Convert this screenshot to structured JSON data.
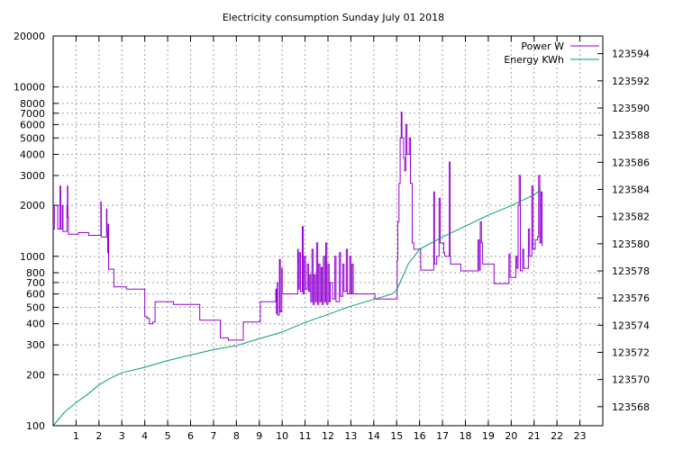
{
  "chart_data": {
    "type": "line",
    "title": "Electricity consumption Sunday July 01 2018",
    "xlabel": "",
    "ylabel": "",
    "y2label": "",
    "xlim": [
      0,
      24
    ],
    "ylim": [
      100,
      20000
    ],
    "y_scale": "log",
    "y2lim": [
      123566.6,
      123595.3
    ],
    "grid": true,
    "legend_position": "top-right",
    "x_ticks": [
      "1",
      "2",
      "3",
      "4",
      "5",
      "6",
      "7",
      "8",
      "9",
      "10",
      "11",
      "12",
      "13",
      "14",
      "15",
      "16",
      "17",
      "18",
      "19",
      "20",
      "21",
      "22",
      "23"
    ],
    "y_ticks": [
      {
        "value": 100,
        "label": "100"
      },
      {
        "value": 200,
        "label": "200"
      },
      {
        "value": 300,
        "label": "300"
      },
      {
        "value": 400,
        "label": "400"
      },
      {
        "value": 500,
        "label": "500"
      },
      {
        "value": 600,
        "label": "600"
      },
      {
        "value": 700,
        "label": "700"
      },
      {
        "value": 800,
        "label": "800"
      },
      {
        "value": 1000,
        "label": "1000"
      },
      {
        "value": 2000,
        "label": "2000"
      },
      {
        "value": 3000,
        "label": "3000"
      },
      {
        "value": 4000,
        "label": "4000"
      },
      {
        "value": 5000,
        "label": "5000"
      },
      {
        "value": 6000,
        "label": "6000"
      },
      {
        "value": 7000,
        "label": "7000"
      },
      {
        "value": 8000,
        "label": "8000"
      },
      {
        "value": 10000,
        "label": "10000"
      },
      {
        "value": 20000,
        "label": "20000"
      }
    ],
    "y2_ticks": [
      {
        "value": 123568,
        "label": "123568"
      },
      {
        "value": 123570,
        "label": "123570"
      },
      {
        "value": 123572,
        "label": "123572"
      },
      {
        "value": 123574,
        "label": "123574"
      },
      {
        "value": 123576,
        "label": "123576"
      },
      {
        "value": 123578,
        "label": "123578"
      },
      {
        "value": 123580,
        "label": "123580"
      },
      {
        "value": 123582,
        "label": "123582"
      },
      {
        "value": 123584,
        "label": "123584"
      },
      {
        "value": 123586,
        "label": "123586"
      },
      {
        "value": 123588,
        "label": "123588"
      },
      {
        "value": 123590,
        "label": "123590"
      },
      {
        "value": 123592,
        "label": "123592"
      },
      {
        "value": 123594,
        "label": "123594"
      }
    ],
    "series": [
      {
        "name": "Power W",
        "axis": "left",
        "color": "#9400d3",
        "step": true,
        "points": [
          [
            0.0,
            1450
          ],
          [
            0.05,
            2000
          ],
          [
            0.2,
            2000
          ],
          [
            0.2,
            1450
          ],
          [
            0.28,
            1450
          ],
          [
            0.3,
            2600
          ],
          [
            0.33,
            1450
          ],
          [
            0.38,
            1450
          ],
          [
            0.4,
            2000
          ],
          [
            0.43,
            1400
          ],
          [
            0.55,
            1400
          ],
          [
            0.6,
            2000
          ],
          [
            0.62,
            2600
          ],
          [
            0.64,
            1700
          ],
          [
            0.67,
            1350
          ],
          [
            0.85,
            1350
          ],
          [
            1.1,
            1380
          ],
          [
            1.55,
            1330
          ],
          [
            2.05,
            1330
          ],
          [
            2.08,
            2100
          ],
          [
            2.1,
            1300
          ],
          [
            2.3,
            1300
          ],
          [
            2.33,
            1900
          ],
          [
            2.35,
            1400
          ],
          [
            2.38,
            1050
          ],
          [
            2.4,
            1550
          ],
          [
            2.42,
            840
          ],
          [
            2.6,
            840
          ],
          [
            2.65,
            660
          ],
          [
            3.15,
            660
          ],
          [
            3.2,
            640
          ],
          [
            3.9,
            640
          ],
          [
            4.0,
            440
          ],
          [
            4.1,
            430
          ],
          [
            4.2,
            400
          ],
          [
            4.35,
            410
          ],
          [
            4.45,
            540
          ],
          [
            5.2,
            540
          ],
          [
            5.25,
            520
          ],
          [
            6.35,
            520
          ],
          [
            6.4,
            420
          ],
          [
            7.25,
            420
          ],
          [
            7.3,
            330
          ],
          [
            7.65,
            320
          ],
          [
            8.25,
            320
          ],
          [
            8.3,
            410
          ],
          [
            9.0,
            410
          ],
          [
            9.05,
            540
          ],
          [
            9.7,
            540
          ],
          [
            9.72,
            640
          ],
          [
            9.75,
            460
          ],
          [
            9.78,
            700
          ],
          [
            9.8,
            450
          ],
          [
            9.88,
            960
          ],
          [
            9.92,
            470
          ],
          [
            9.98,
            850
          ],
          [
            10.0,
            600
          ],
          [
            10.5,
            600
          ],
          [
            10.6,
            600
          ],
          [
            10.68,
            1100
          ],
          [
            10.7,
            640
          ],
          [
            10.75,
            1050
          ],
          [
            10.8,
            620
          ],
          [
            10.88,
            1500
          ],
          [
            10.92,
            600
          ],
          [
            10.97,
            1000
          ],
          [
            11.02,
            640
          ],
          [
            11.1,
            900
          ],
          [
            11.15,
            620
          ],
          [
            11.2,
            780
          ],
          [
            11.25,
            540
          ],
          [
            11.3,
            1100
          ],
          [
            11.35,
            520
          ],
          [
            11.4,
            780
          ],
          [
            11.45,
            540
          ],
          [
            11.5,
            1200
          ],
          [
            11.55,
            520
          ],
          [
            11.6,
            900
          ],
          [
            11.65,
            540
          ],
          [
            11.7,
            860
          ],
          [
            11.75,
            520
          ],
          [
            11.8,
            1000
          ],
          [
            11.85,
            540
          ],
          [
            11.9,
            1200
          ],
          [
            11.95,
            520
          ],
          [
            12.0,
            900
          ],
          [
            12.05,
            540
          ],
          [
            12.1,
            700
          ],
          [
            12.2,
            560
          ],
          [
            12.3,
            1000
          ],
          [
            12.35,
            540
          ],
          [
            12.5,
            1050
          ],
          [
            12.55,
            580
          ],
          [
            12.65,
            900
          ],
          [
            12.7,
            620
          ],
          [
            12.8,
            1100
          ],
          [
            12.85,
            600
          ],
          [
            12.95,
            1000
          ],
          [
            13.0,
            600
          ],
          [
            13.05,
            900
          ],
          [
            13.1,
            600
          ],
          [
            14.0,
            600
          ],
          [
            14.05,
            560
          ],
          [
            15.0,
            560
          ],
          [
            15.02,
            950
          ],
          [
            15.05,
            1600
          ],
          [
            15.1,
            2700
          ],
          [
            15.15,
            5000
          ],
          [
            15.2,
            7100
          ],
          [
            15.23,
            5000
          ],
          [
            15.3,
            3800
          ],
          [
            15.35,
            3200
          ],
          [
            15.4,
            6000
          ],
          [
            15.45,
            4000
          ],
          [
            15.55,
            5000
          ],
          [
            15.6,
            2700
          ],
          [
            15.68,
            1200
          ],
          [
            15.75,
            1100
          ],
          [
            16.05,
            830
          ],
          [
            16.6,
            830
          ],
          [
            16.62,
            2400
          ],
          [
            16.65,
            900
          ],
          [
            16.75,
            1000
          ],
          [
            16.85,
            2200
          ],
          [
            16.9,
            1200
          ],
          [
            17.05,
            1050
          ],
          [
            17.1,
            1000
          ],
          [
            17.25,
            1000
          ],
          [
            17.3,
            3600
          ],
          [
            17.33,
            1000
          ],
          [
            17.35,
            900
          ],
          [
            17.75,
            900
          ],
          [
            17.8,
            820
          ],
          [
            18.5,
            820
          ],
          [
            18.55,
            1250
          ],
          [
            18.6,
            830
          ],
          [
            18.65,
            1600
          ],
          [
            18.7,
            1200
          ],
          [
            18.75,
            900
          ],
          [
            18.8,
            900
          ],
          [
            19.2,
            900
          ],
          [
            19.25,
            690
          ],
          [
            19.85,
            690
          ],
          [
            19.9,
            1030
          ],
          [
            19.95,
            750
          ],
          [
            20.2,
            1000
          ],
          [
            20.25,
            850
          ],
          [
            20.3,
            2000
          ],
          [
            20.35,
            3000
          ],
          [
            20.4,
            820
          ],
          [
            20.5,
            1100
          ],
          [
            20.55,
            850
          ],
          [
            20.75,
            1450
          ],
          [
            20.8,
            1000
          ],
          [
            20.9,
            2600
          ],
          [
            20.95,
            1100
          ],
          [
            21.05,
            1250
          ],
          [
            21.15,
            1300
          ],
          [
            21.2,
            3000
          ],
          [
            21.25,
            1200
          ],
          [
            21.3,
            2400
          ],
          [
            21.35,
            1150
          ]
        ]
      },
      {
        "name": "Energy KWh",
        "axis": "right",
        "color": "#009e73",
        "step": false,
        "points": [
          [
            0.0,
            123566.6
          ],
          [
            0.5,
            123567.6
          ],
          [
            1.0,
            123568.3
          ],
          [
            1.5,
            123568.9
          ],
          [
            2.0,
            123569.6
          ],
          [
            2.5,
            123570.1
          ],
          [
            3.0,
            123570.5
          ],
          [
            4.0,
            123570.9
          ],
          [
            5.0,
            123571.4
          ],
          [
            6.0,
            123571.8
          ],
          [
            7.0,
            123572.2
          ],
          [
            8.0,
            123572.5
          ],
          [
            9.0,
            123573.0
          ],
          [
            10.0,
            123573.5
          ],
          [
            11.0,
            123574.2
          ],
          [
            12.0,
            123574.8
          ],
          [
            13.0,
            123575.4
          ],
          [
            14.0,
            123575.9
          ],
          [
            14.8,
            123576.3
          ],
          [
            15.0,
            123576.6
          ],
          [
            15.5,
            123578.5
          ],
          [
            16.0,
            123579.6
          ],
          [
            17.0,
            123580.5
          ],
          [
            18.0,
            123581.3
          ],
          [
            19.0,
            123582.1
          ],
          [
            20.0,
            123582.8
          ],
          [
            21.0,
            123583.6
          ],
          [
            21.3,
            123584.0
          ]
        ]
      }
    ]
  }
}
